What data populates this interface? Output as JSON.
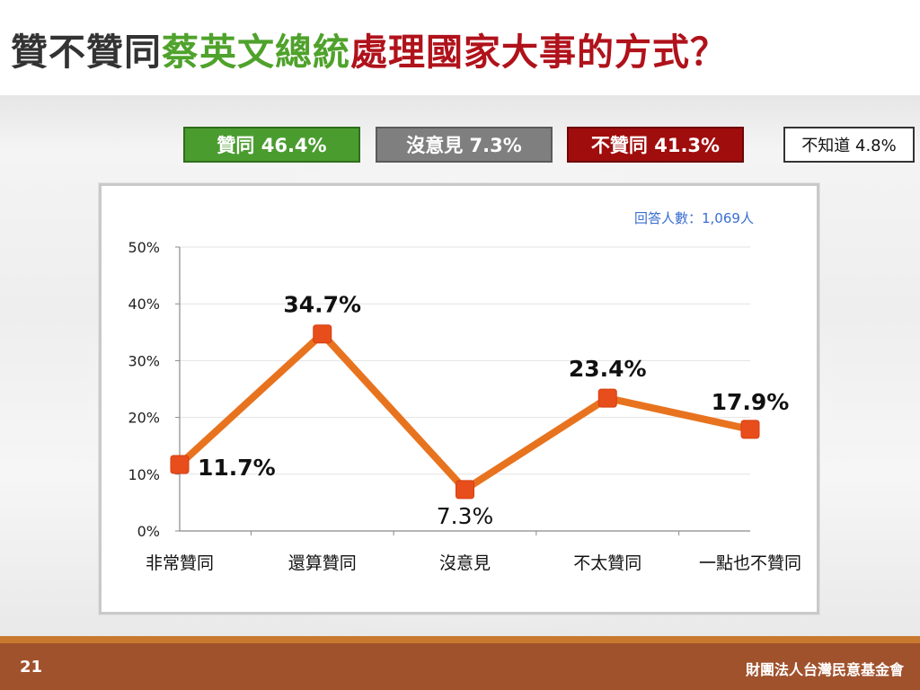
{
  "title": {
    "part1": "贊不贊同",
    "part2": "蔡英文總統",
    "part3": "處理國家大事的方式？"
  },
  "summary": {
    "agree": "贊同 46.4%",
    "no_opinion": "沒意見 7.3%",
    "disagree": "不贊同 41.3%",
    "unknown": "不知道 4.8%"
  },
  "sample_note": "回答人數：1,069人",
  "chart_data": {
    "type": "line",
    "categories": [
      "非常贊同",
      "還算贊同",
      "沒意見",
      "不太贊同",
      "一點也不贊同"
    ],
    "values": [
      11.7,
      34.7,
      7.3,
      23.4,
      17.9
    ],
    "data_labels": [
      "11.7%",
      "34.7%",
      "7.3%",
      "23.4%",
      "17.9%"
    ],
    "y_ticks": [
      "0%",
      "10%",
      "20%",
      "30%",
      "40%",
      "50%"
    ],
    "ylim": [
      0,
      50
    ],
    "grid": true,
    "line_color": "#e8731f",
    "marker_color": "#e84e1b"
  },
  "footer": {
    "page": "21",
    "org": "財團法人台灣民意基金會"
  },
  "colors": {
    "agree": "#4a9c2f",
    "no_opinion": "#7f7f7f",
    "disagree": "#a00d0d"
  }
}
